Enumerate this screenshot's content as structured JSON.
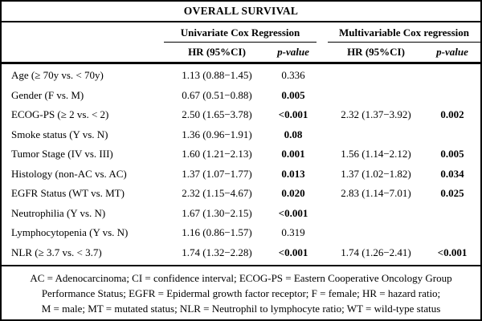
{
  "title": "OVERALL SURVIVAL",
  "column_groups": {
    "univariate": "Univariate Cox Regression",
    "multivariable": "Multivariable Cox regression"
  },
  "subheaders": {
    "hr": "HR (95%CI)",
    "p": "p-value"
  },
  "rows": [
    {
      "label": "Age (≥ 70y vs. < 70y)",
      "uni_hr": "1.13 (0.88−1.45)",
      "uni_p": "0.336",
      "multi_hr": "",
      "multi_p": ""
    },
    {
      "label": "Gender (F vs. M)",
      "uni_hr": "0.67 (0.51−0.88)",
      "uni_p": "0.005",
      "multi_hr": "",
      "multi_p": ""
    },
    {
      "label": "ECOG-PS (≥ 2 vs. < 2)",
      "uni_hr": "2.50 (1.65−3.78)",
      "uni_p": "<0.001",
      "multi_hr": "2.32 (1.37−3.92)",
      "multi_p": "0.002"
    },
    {
      "label": "Smoke status (Y vs. N)",
      "uni_hr": "1.36 (0.96−1.91)",
      "uni_p": "0.08",
      "multi_hr": "",
      "multi_p": ""
    },
    {
      "label": "Tumor Stage (IV vs. III)",
      "uni_hr": "1.60 (1.21−2.13)",
      "uni_p": "0.001",
      "multi_hr": "1.56 (1.14−2.12)",
      "multi_p": "0.005"
    },
    {
      "label": "Histology (non-AC vs. AC)",
      "uni_hr": "1.37 (1.07−1.77)",
      "uni_p": "0.013",
      "multi_hr": "1.37 (1.02−1.82)",
      "multi_p": "0.034"
    },
    {
      "label": "EGFR Status (WT vs. MT)",
      "uni_hr": "2.32 (1.15−4.67)",
      "uni_p": "0.020",
      "multi_hr": "2.83 (1.14−7.01)",
      "multi_p": "0.025"
    },
    {
      "label": "Neutrophilia (Y vs. N)",
      "uni_hr": "1.67 (1.30−2.15)",
      "uni_p": "<0.001",
      "multi_hr": "",
      "multi_p": ""
    },
    {
      "label": "Lymphocytopenia (Y vs. N)",
      "uni_hr": "1.16 (0.86−1.57)",
      "uni_p": "0.319",
      "multi_hr": "",
      "multi_p": ""
    },
    {
      "label": "NLR (≥ 3.7 vs. < 3.7)",
      "uni_hr": "1.74 (1.32−2.28)",
      "uni_p": "<0.001",
      "multi_hr": "1.74 (1.26−2.41)",
      "multi_p": "<0.001"
    }
  ],
  "footnote": {
    "line1": "AC = Adenocarcinoma; CI = confidence interval; ECOG-PS = Eastern Cooperative Oncology Group",
    "line2": "Performance Status; EGFR = Epidermal growth factor receptor; F = female; HR = hazard ratio;",
    "line3": "M = male; MT = mutated status; NLR = Neutrophil to lymphocyte ratio; WT = wild-type status"
  },
  "colors": {
    "text": "#000000",
    "background": "#ffffff",
    "border": "#000000"
  }
}
